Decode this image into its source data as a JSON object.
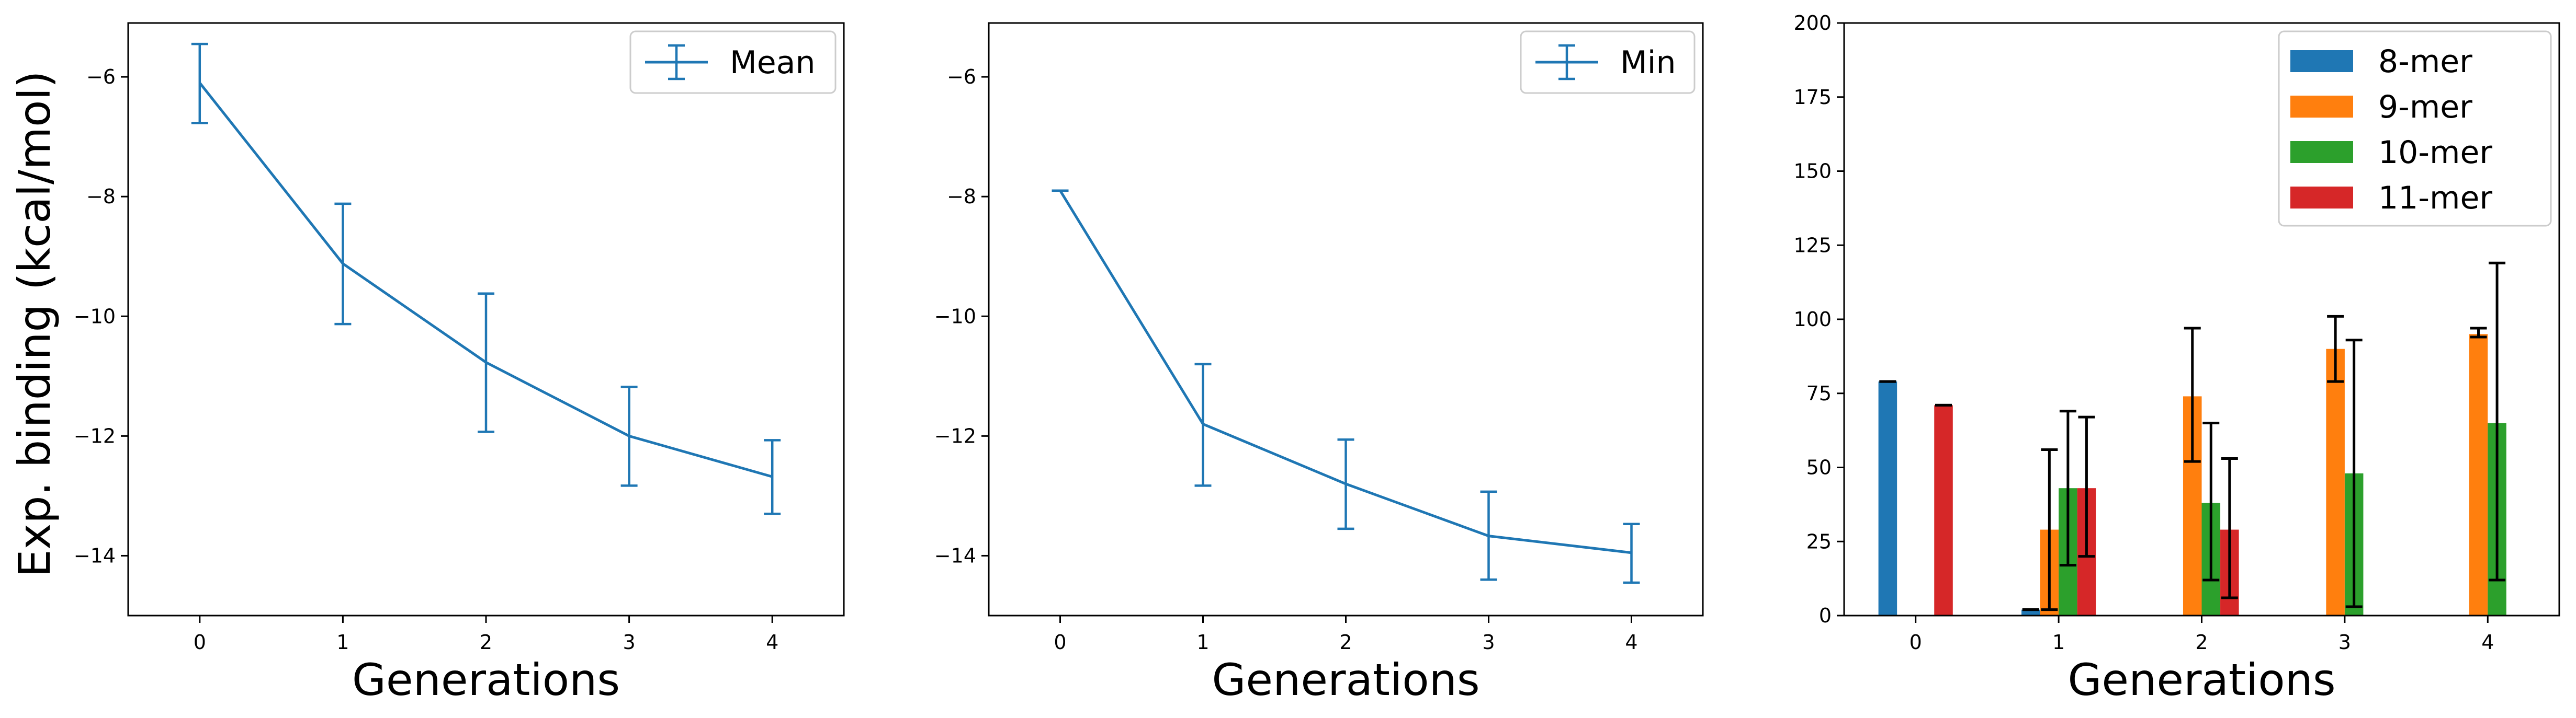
{
  "figure": {
    "ylabel": "Exp. binding (kcal/mol)"
  },
  "chart_data": [
    {
      "type": "line",
      "title": "",
      "xlabel": "Generations",
      "ylabel": "Exp. binding (kcal/mol)",
      "x": [
        0,
        1,
        2,
        3,
        4
      ],
      "xticks": [
        "0",
        "1",
        "2",
        "3",
        "4"
      ],
      "xlim": [
        -0.5,
        4.5
      ],
      "ylim": [
        -15,
        -5.1
      ],
      "yticks": [
        "−14",
        "−12",
        "−10",
        "−8",
        "−6"
      ],
      "ytick_values": [
        -14,
        -12,
        -10,
        -8,
        -6
      ],
      "grid": false,
      "legend": "top-right",
      "series": [
        {
          "name": "Mean",
          "values": [
            -6.1,
            -9.12,
            -10.77,
            -12.0,
            -12.68
          ],
          "error_low": [
            -6.77,
            -10.13,
            -11.93,
            -12.83,
            -13.3
          ],
          "error_high": [
            -5.45,
            -8.12,
            -9.62,
            -11.18,
            -12.07
          ],
          "color": "#1f77b4"
        }
      ]
    },
    {
      "type": "line",
      "title": "",
      "xlabel": "Generations",
      "ylabel": "",
      "x": [
        0,
        1,
        2,
        3,
        4
      ],
      "xticks": [
        "0",
        "1",
        "2",
        "3",
        "4"
      ],
      "xlim": [
        -0.5,
        4.5
      ],
      "ylim": [
        -15,
        -5.1
      ],
      "yticks": [
        "−14",
        "−12",
        "−10",
        "−8",
        "−6"
      ],
      "ytick_values": [
        -14,
        -12,
        -10,
        -8,
        -6
      ],
      "grid": false,
      "legend": "top-right",
      "series": [
        {
          "name": "Min",
          "values": [
            -7.9,
            -11.8,
            -12.8,
            -13.67,
            -13.95
          ],
          "error_low": [
            -7.9,
            -12.83,
            -13.55,
            -14.4,
            -14.45
          ],
          "error_high": [
            -7.9,
            -10.8,
            -12.06,
            -12.93,
            -13.47
          ],
          "color": "#1f77b4"
        }
      ]
    },
    {
      "type": "bar",
      "title": "",
      "xlabel": "Generations",
      "ylabel": "",
      "categories": [
        "0",
        "1",
        "2",
        "3",
        "4"
      ],
      "xlim": [
        -0.5,
        4.5
      ],
      "ylim": [
        0,
        200
      ],
      "yticks": [
        "0",
        "25",
        "50",
        "75",
        "100",
        "125",
        "150",
        "175",
        "200"
      ],
      "ytick_values": [
        0,
        25,
        50,
        75,
        100,
        125,
        150,
        175,
        200
      ],
      "grid": false,
      "legend": "top-right",
      "series": [
        {
          "name": "8-mer",
          "values": [
            79,
            2,
            0,
            0,
            0
          ],
          "error_low": [
            79,
            2,
            0,
            0,
            0
          ],
          "error_high": [
            79,
            2,
            0,
            0,
            0
          ],
          "color": "#1f77b4"
        },
        {
          "name": "9-mer",
          "values": [
            0,
            29,
            74,
            90,
            95
          ],
          "error_low": [
            0,
            2,
            52,
            79,
            94
          ],
          "error_high": [
            0,
            56,
            97,
            101,
            97
          ],
          "color": "#ff7f0e"
        },
        {
          "name": "10-mer",
          "values": [
            0,
            43,
            38,
            48,
            65
          ],
          "error_low": [
            0,
            17,
            12,
            3,
            12
          ],
          "error_high": [
            0,
            69,
            65,
            93,
            119
          ],
          "color": "#2ca02c"
        },
        {
          "name": "11-mer",
          "values": [
            71,
            43,
            29,
            0,
            0
          ],
          "error_low": [
            71,
            20,
            6,
            0,
            0
          ],
          "error_high": [
            71,
            67,
            53,
            0,
            0
          ],
          "color": "#d62728"
        }
      ]
    }
  ]
}
